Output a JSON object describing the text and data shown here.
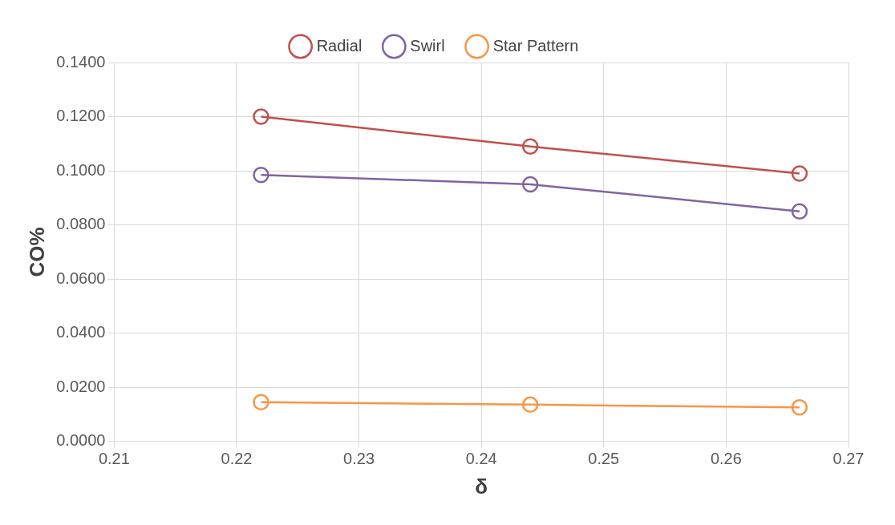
{
  "chart_data": {
    "type": "line",
    "xlabel": "δ",
    "ylabel": "CO%",
    "x": [
      0.222,
      0.244,
      0.266
    ],
    "series": [
      {
        "name": "Radial",
        "color": "#c0504d",
        "values": [
          0.12,
          0.109,
          0.099
        ]
      },
      {
        "name": "Swirl",
        "color": "#8064a2",
        "values": [
          0.0985,
          0.095,
          0.085
        ]
      },
      {
        "name": "Star Pattern",
        "color": "#f79646",
        "values": [
          0.0145,
          0.0136,
          0.0126
        ]
      }
    ],
    "xlim": [
      0.21,
      0.27
    ],
    "xticks": [
      0.21,
      0.22,
      0.23,
      0.24,
      0.25,
      0.26,
      0.27
    ],
    "ylim": [
      0,
      0.14
    ],
    "yticks": [
      {
        "value": 0,
        "label": "0.0000"
      },
      {
        "value": 0.02,
        "label": "0.0200"
      },
      {
        "value": 0.04,
        "label": "0.0400"
      },
      {
        "value": 0.06,
        "label": "0.0600"
      },
      {
        "value": 0.08,
        "label": "0.0800"
      },
      {
        "value": 0.1,
        "label": "0.1000"
      },
      {
        "value": 0.12,
        "label": "0.1200"
      },
      {
        "value": 0.14,
        "label": "0.1400"
      }
    ],
    "grid": true,
    "legend": "top",
    "marker": "circle",
    "line_style": "solid"
  }
}
